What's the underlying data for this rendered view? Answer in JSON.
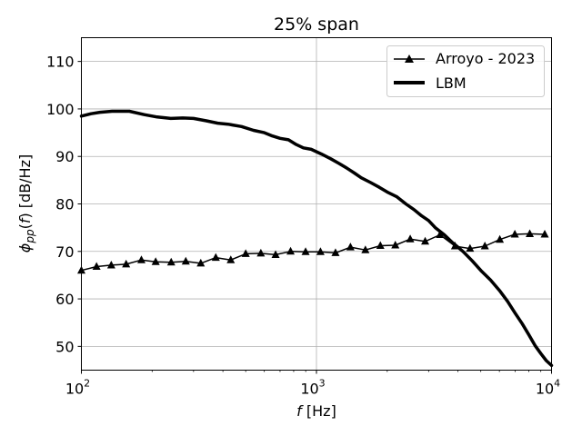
{
  "chart_data": {
    "type": "line",
    "title": "25% span",
    "xlabel_var": "f",
    "xlabel_unit": " [Hz]",
    "ylabel": "φ_pp(f) [dB/Hz]",
    "xscale": "log",
    "xlim": [
      100,
      10000
    ],
    "ylim": [
      45,
      115
    ],
    "grid": true,
    "legend_position": "top-right",
    "x_ticks": [
      {
        "value": 100,
        "base": "10",
        "exp": "2"
      },
      {
        "value": 1000,
        "base": "10",
        "exp": "3"
      },
      {
        "value": 10000,
        "base": "10",
        "exp": "4"
      }
    ],
    "y_ticks": [
      50,
      60,
      70,
      80,
      90,
      100,
      110
    ],
    "series": [
      {
        "name": "Arroyo - 2023",
        "style": "line-triangle-markers",
        "color": "#000000",
        "x": [
          100,
          116,
          134,
          155,
          180,
          207,
          241,
          278,
          322,
          373,
          432,
          500,
          580,
          670,
          776,
          899,
          1040,
          1205,
          1395,
          1615,
          1870,
          2165,
          2505,
          2900,
          3355,
          3885,
          4500,
          5205,
          6025,
          6980,
          8080,
          9355
        ],
        "y": [
          66.0,
          66.8,
          67.1,
          67.3,
          68.2,
          67.8,
          67.7,
          67.9,
          67.5,
          68.7,
          68.2,
          69.5,
          69.6,
          69.3,
          70.0,
          69.9,
          69.9,
          69.7,
          70.9,
          70.3,
          71.2,
          71.3,
          72.6,
          72.1,
          73.5,
          71.1,
          70.6,
          71.1,
          72.5,
          73.6,
          73.7,
          73.6
        ]
      },
      {
        "name": "LBM",
        "style": "thick-line",
        "color": "#000000",
        "x": [
          100,
          110,
          120,
          135,
          160,
          185,
          210,
          240,
          270,
          300,
          340,
          380,
          420,
          480,
          540,
          600,
          650,
          700,
          760,
          820,
          880,
          950,
          1050,
          1150,
          1250,
          1350,
          1450,
          1550,
          1700,
          1850,
          2000,
          2200,
          2400,
          2600,
          2800,
          3000,
          3200,
          3500,
          3800,
          4200,
          4600,
          5000,
          5500,
          6000,
          6500,
          7000,
          7500,
          8000,
          8500,
          9000,
          9500,
          10000
        ],
        "y": [
          98.5,
          99.0,
          99.3,
          99.5,
          99.5,
          98.8,
          98.3,
          98.0,
          98.1,
          98.0,
          97.5,
          97.0,
          96.8,
          96.3,
          95.5,
          95.0,
          94.3,
          93.8,
          93.5,
          92.5,
          91.8,
          91.5,
          90.5,
          89.5,
          88.5,
          87.5,
          86.5,
          85.5,
          84.5,
          83.5,
          82.5,
          81.5,
          80.0,
          78.8,
          77.5,
          76.5,
          75.0,
          73.5,
          71.8,
          70.0,
          68.0,
          66.0,
          64.0,
          61.8,
          59.5,
          57.0,
          54.8,
          52.5,
          50.2,
          48.5,
          47.0,
          46.0
        ]
      }
    ]
  }
}
